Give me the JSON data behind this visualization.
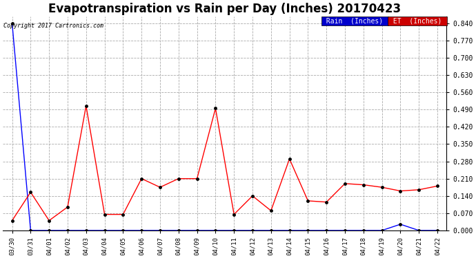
{
  "title": "Evapotranspiration vs Rain per Day (Inches) 20170423",
  "copyright": "Copyright 2017 Cartronics.com",
  "x_labels": [
    "03/30",
    "03/31",
    "04/01",
    "04/02",
    "04/03",
    "04/04",
    "04/05",
    "04/06",
    "04/07",
    "04/08",
    "04/09",
    "04/10",
    "04/11",
    "04/12",
    "04/13",
    "04/14",
    "04/15",
    "04/16",
    "04/17",
    "04/18",
    "04/19",
    "04/20",
    "04/21",
    "04/22"
  ],
  "rain_data": [
    0.84,
    0.0,
    0.0,
    0.0,
    0.0,
    0.0,
    0.0,
    0.0,
    0.0,
    0.0,
    0.0,
    0.0,
    0.0,
    0.0,
    0.0,
    0.0,
    0.0,
    0.0,
    0.0,
    0.0,
    0.0,
    0.025,
    0.0,
    0.0
  ],
  "et_data": [
    0.04,
    0.155,
    0.04,
    0.095,
    0.505,
    0.065,
    0.065,
    0.21,
    0.175,
    0.21,
    0.21,
    0.495,
    0.065,
    0.14,
    0.08,
    0.29,
    0.12,
    0.115,
    0.19,
    0.185,
    0.175,
    0.16,
    0.165,
    0.18
  ],
  "ylim": [
    0.0,
    0.868
  ],
  "yticks": [
    0.0,
    0.07,
    0.14,
    0.21,
    0.28,
    0.35,
    0.42,
    0.49,
    0.56,
    0.63,
    0.7,
    0.77,
    0.84
  ],
  "rain_color": "#0000ff",
  "et_color": "#ff0000",
  "background_color": "#ffffff",
  "grid_color": "#aaaaaa",
  "title_fontsize": 12,
  "legend_rain_label": "Rain  (Inches)",
  "legend_et_label": "ET  (Inches)",
  "legend_rain_bg": "#0000cc",
  "legend_et_bg": "#cc0000"
}
